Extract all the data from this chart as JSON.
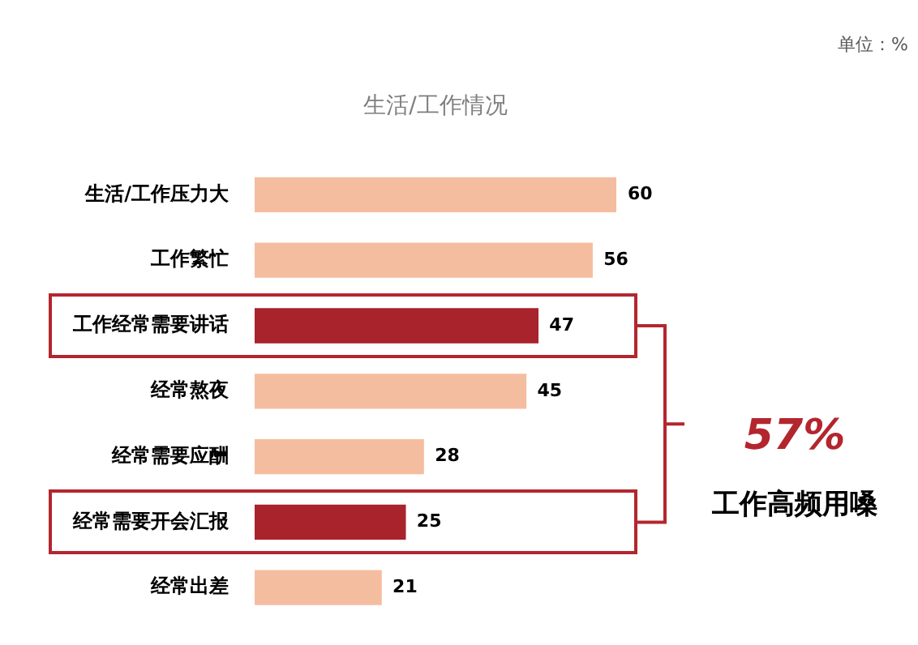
{
  "chart_data": {
    "type": "bar",
    "orientation": "horizontal",
    "title": "生活/工作情况",
    "categories": [
      "生活/工作压力大",
      "工作繁忙",
      "工作经常需要讲话",
      "经常熬夜",
      "经常需要应酬",
      "经常需要开会汇报",
      "经常出差"
    ],
    "values": [
      60,
      56,
      47,
      45,
      28,
      25,
      21
    ],
    "colors": [
      "#f5bd9f",
      "#f5bd9f",
      "#a8232b",
      "#f5bd9f",
      "#f5bd9f",
      "#a8232b",
      "#f5bd9f"
    ],
    "data_labels": true,
    "annotations": [
      "单位：%",
      "57%",
      "工作高频用嗓"
    ]
  }
}
